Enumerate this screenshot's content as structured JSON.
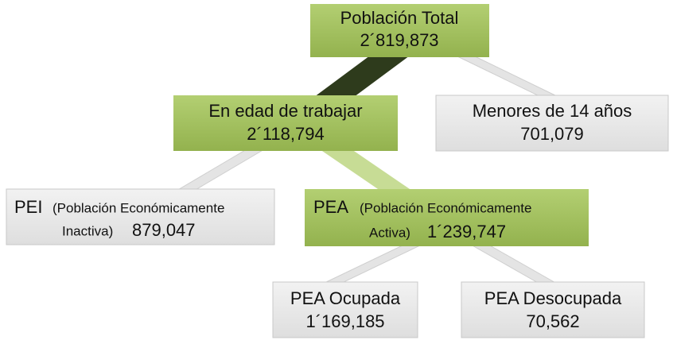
{
  "nodes": [
    {
      "label": "Población Total",
      "value": "2´819,873"
    },
    {
      "label": "En edad de trabajar",
      "value": "2´118,794"
    },
    {
      "label": "Menores de 14 años",
      "value": "701,079"
    },
    {
      "label": "PEI",
      "desc_line1": "(Población Económicamente",
      "desc_line2": "Inactiva)",
      "value": "879,047"
    },
    {
      "label": "PEA",
      "desc_line1": "(Población Económicamente",
      "desc_line2": "Activa)",
      "value": "1´239,747"
    },
    {
      "label": "PEA Ocupada",
      "value": "1´169,185"
    },
    {
      "label": "PEA Desocupada",
      "value": "70,562"
    }
  ]
}
